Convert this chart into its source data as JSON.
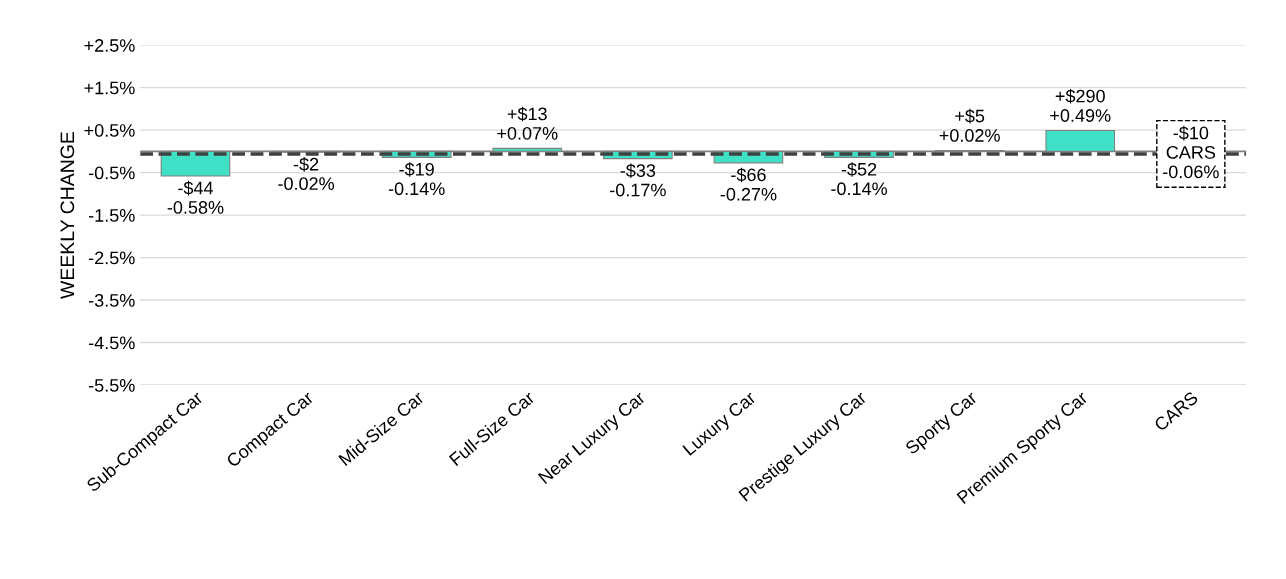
{
  "chart_data": {
    "type": "bar",
    "ylabel": "WEEKLY CHANGE",
    "categories": [
      "Sub-Compact Car",
      "Compact Car",
      "Mid-Size Car",
      "Full-Size Car",
      "Near Luxury Car",
      "Luxury Car",
      "Prestige Luxury Car",
      "Sporty Car",
      "Premium Sporty Car",
      "CARS"
    ],
    "values": [
      -0.58,
      -0.02,
      -0.14,
      0.07,
      -0.17,
      -0.27,
      -0.14,
      0.02,
      0.49,
      null
    ],
    "value_labels": [
      "-$44\n-0.58%",
      "-$2\n-0.02%",
      "-$19\n-0.14%",
      "+$13\n+0.07%",
      "-$33\n-0.17%",
      "-$66\n-0.27%",
      "-$52\n-0.14%",
      "+$5\n+0.02%",
      "+$290\n+0.49%",
      null
    ],
    "color": "#40e0c6",
    "ylim": [
      -5.5,
      2.5
    ],
    "yticks": [
      {
        "value": 2.5,
        "label": "+2.5%"
      },
      {
        "value": 1.5,
        "label": "+1.5%"
      },
      {
        "value": 0.5,
        "label": "+0.5%"
      },
      {
        "value": -0.5,
        "label": "-0.5%"
      },
      {
        "value": -1.5,
        "label": "-1.5%"
      },
      {
        "value": -2.5,
        "label": "-2.5%"
      },
      {
        "value": -3.5,
        "label": "-3.5%"
      },
      {
        "value": -4.5,
        "label": "-4.5%"
      },
      {
        "value": -5.5,
        "label": "-5.5%"
      }
    ],
    "grid": "y",
    "ref_lines": [
      {
        "axis": "y",
        "value": -0.06,
        "label": "-$10\nCARS\n-0.06%",
        "color": "#404040",
        "line_style": "dashed"
      }
    ]
  }
}
